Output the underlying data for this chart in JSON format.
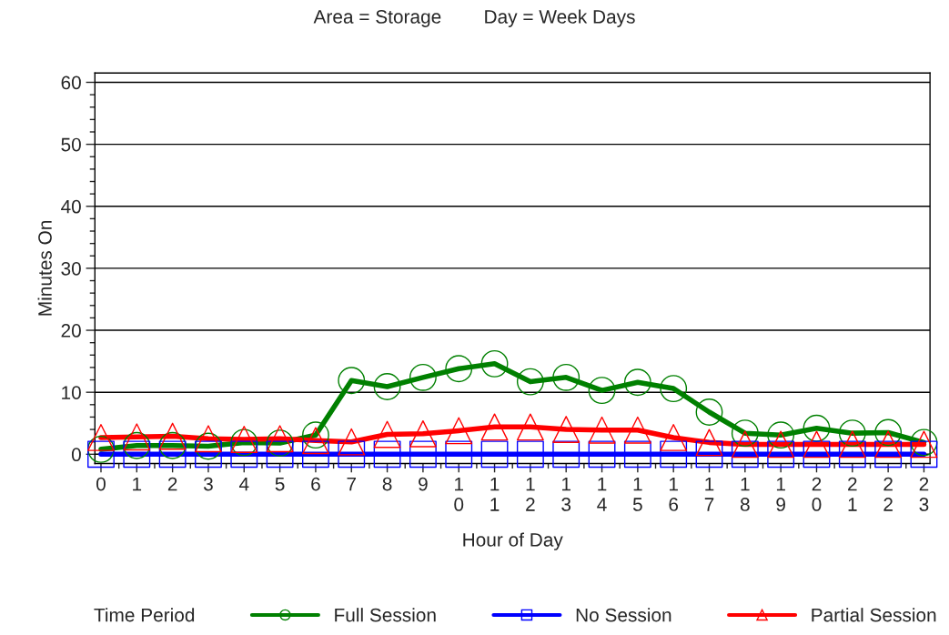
{
  "chart_data": {
    "type": "line",
    "title": "Area = Storage        Day = Week Days",
    "xlabel": "Hour of Day",
    "ylabel": "Minutes On",
    "categories": [
      "0",
      "1",
      "2",
      "3",
      "4",
      "5",
      "6",
      "7",
      "8",
      "9",
      "10",
      "11",
      "12",
      "13",
      "14",
      "15",
      "16",
      "17",
      "18",
      "19",
      "20",
      "21",
      "22",
      "23"
    ],
    "series": [
      {
        "name": "Full Session",
        "color": "#008000",
        "marker": "circle",
        "values": [
          0.8,
          1.4,
          1.4,
          1.3,
          1.9,
          1.8,
          3.1,
          11.9,
          10.9,
          12.4,
          13.8,
          14.6,
          11.7,
          12.4,
          10.3,
          11.6,
          10.6,
          6.8,
          3.4,
          3.1,
          4.2,
          3.4,
          3.5,
          1.9
        ]
      },
      {
        "name": "No Session",
        "color": "#0000ff",
        "marker": "square",
        "values": [
          0,
          0,
          0,
          0,
          0,
          0,
          0,
          0,
          0,
          0,
          0,
          0,
          0,
          0,
          0,
          0,
          0,
          0,
          0,
          0,
          0,
          0,
          0,
          0
        ]
      },
      {
        "name": "Partial Session",
        "color": "#ff0000",
        "marker": "triangle",
        "values": [
          2.7,
          2.8,
          2.9,
          2.5,
          2.4,
          2.5,
          2.2,
          2.0,
          3.2,
          3.3,
          3.8,
          4.4,
          4.4,
          4.0,
          3.9,
          3.9,
          2.7,
          1.9,
          1.6,
          1.6,
          1.6,
          1.6,
          1.6,
          1.6
        ]
      }
    ],
    "legend_title": "Time Period",
    "legend": "bottom",
    "ylim": [
      -1.5,
      61.5
    ],
    "yticks": [
      0,
      10,
      20,
      30,
      40,
      50,
      60
    ],
    "grid": "y"
  }
}
